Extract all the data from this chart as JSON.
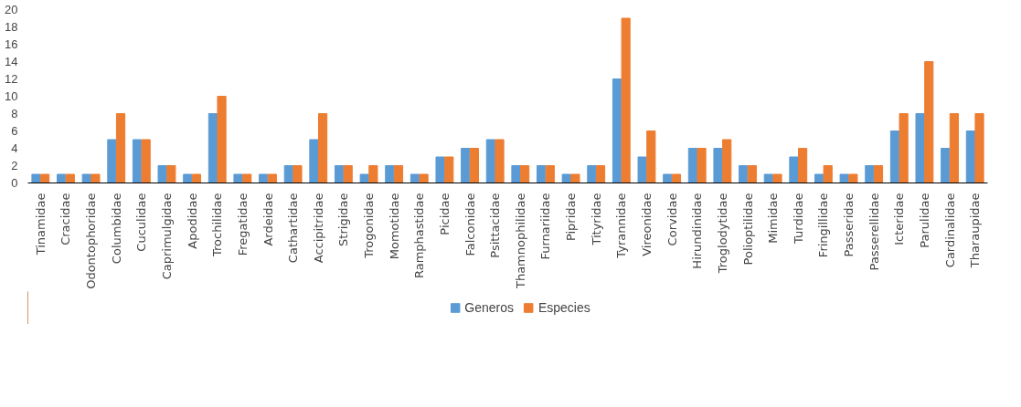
{
  "chart_data": {
    "type": "bar",
    "categories": [
      "Tinamidae",
      "Cracidae",
      "Odontophoridae",
      "Columbidae",
      "Cuculidae",
      "Caprimulgidae",
      "Apodidae",
      "Trochilidae",
      "Fregatidae",
      "Ardeidae",
      "Cathartidae",
      "Accipitridae",
      "Strigidae",
      "Trogonidae",
      "Momotidae",
      "Ramphastidae",
      "Picidae",
      "Falconidae",
      "Psittacidae",
      "Thamnophilidae",
      "Furnariidae",
      "Pipridae",
      "Tityridae",
      "Tyrannidae",
      "Vireonidae",
      "Corvidae",
      "Hirundinidae",
      "Troglodytidae",
      "Polioptilidae",
      "Mimidae",
      "Turdidae",
      "Fringillidae",
      "Passeridae",
      "Passerellidae",
      "Icteridae",
      "Parulidae",
      "Cardinalidae",
      "Tharaupidae"
    ],
    "series": [
      {
        "name": "Generos",
        "color": "#5b9bd5",
        "values": [
          1,
          1,
          1,
          5,
          5,
          2,
          1,
          8,
          1,
          1,
          2,
          5,
          2,
          1,
          2,
          1,
          3,
          4,
          5,
          2,
          2,
          1,
          2,
          12,
          3,
          1,
          4,
          4,
          2,
          1,
          3,
          1,
          1,
          2,
          6,
          8,
          4,
          6
        ]
      },
      {
        "name": "Especies",
        "color": "#ed7d31",
        "values": [
          1,
          1,
          1,
          8,
          5,
          2,
          1,
          10,
          1,
          1,
          2,
          8,
          2,
          2,
          2,
          1,
          3,
          4,
          5,
          2,
          2,
          1,
          2,
          19,
          6,
          1,
          4,
          5,
          2,
          1,
          4,
          2,
          1,
          2,
          8,
          14,
          8,
          8
        ]
      }
    ],
    "ylim": [
      0,
      20
    ],
    "yticks": [
      0,
      2,
      4,
      6,
      8,
      10,
      12,
      14,
      16,
      18,
      20
    ],
    "grid": false,
    "legend": "bottom"
  }
}
